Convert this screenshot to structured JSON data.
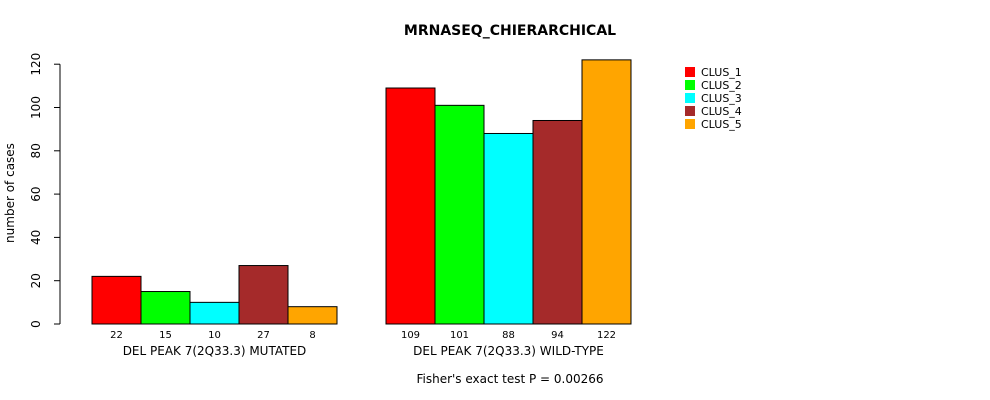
{
  "chart_data": {
    "type": "bar",
    "title": "MRNASEQ_CHIERARCHICAL",
    "xlabel": "",
    "ylabel": "number of cases",
    "ylim": [
      0,
      125
    ],
    "yticks": [
      0,
      20,
      40,
      60,
      80,
      100,
      120
    ],
    "categories": [
      "DEL PEAK  7(2Q33.3) MUTATED",
      "DEL PEAK  7(2Q33.3) WILD-TYPE"
    ],
    "series": [
      {
        "name": "CLUS_1",
        "color": "#ff0000",
        "values": [
          22,
          109
        ]
      },
      {
        "name": "CLUS_2",
        "color": "#00ff00",
        "values": [
          15,
          101
        ]
      },
      {
        "name": "CLUS_3",
        "color": "#00ffff",
        "values": [
          10,
          88
        ]
      },
      {
        "name": "CLUS_4",
        "color": "#a52a2a",
        "values": [
          27,
          94
        ]
      },
      {
        "name": "CLUS_5",
        "color": "#ffa500",
        "values": [
          8,
          122
        ]
      }
    ],
    "legend_position": "top-right",
    "grid": false,
    "annotation": "Fisher's exact test P = 0.00266"
  }
}
